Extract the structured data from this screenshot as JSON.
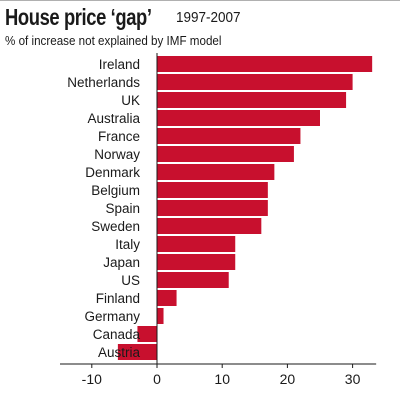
{
  "chart_data": {
    "type": "bar",
    "orientation": "horizontal",
    "title": "House price ‘gap’",
    "subtitle_years": "1997-2007",
    "subtitle": "% of increase not explained by IMF model",
    "categories": [
      "Ireland",
      "Netherlands",
      "UK",
      "Australia",
      "France",
      "Norway",
      "Denmark",
      "Belgium",
      "Spain",
      "Sweden",
      "Italy",
      "Japan",
      "US",
      "Finland",
      "Germany",
      "Canada",
      "Austria"
    ],
    "values": [
      33,
      30,
      29,
      25,
      22,
      21,
      18,
      17,
      17,
      16,
      12,
      12,
      11,
      3,
      1,
      -3,
      -6
    ],
    "xlim": [
      -12,
      33
    ],
    "xticks": [
      -10,
      0,
      10,
      20,
      30
    ],
    "xtick_labels": [
      "-10",
      "0",
      "10",
      "20",
      "30"
    ],
    "grid": false,
    "bar_color": "#c8102e"
  }
}
